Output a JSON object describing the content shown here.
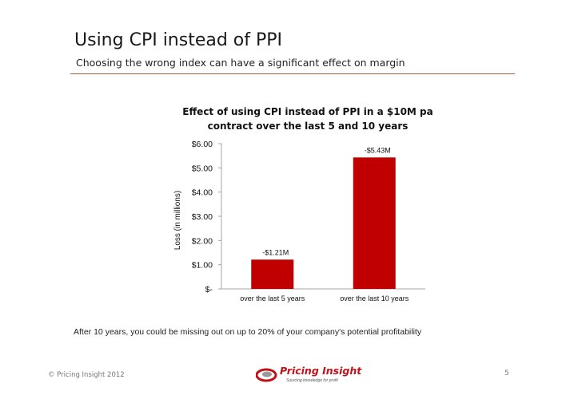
{
  "slide": {
    "title": "Using CPI instead of PPI",
    "subtitle": "Choosing the wrong index can have a significant effect on margin",
    "footnote": "After 10 years, you could be missing out on up to 20% of your company's potential profitability",
    "copyright": "© Pricing Insight 2012",
    "page_number": "5"
  },
  "logo": {
    "name": "Pricing Insight",
    "tagline": "Sourcing knowledge for profit"
  },
  "chart_data": {
    "type": "bar",
    "title_line1": "Effect of using CPI instead of PPI in a $10M pa",
    "title_line2": "contract over the last 5 and 10 years",
    "ylabel": "Loss (in millions)",
    "xlabel": "",
    "categories": [
      "over the last 5 years",
      "over the last 10 years"
    ],
    "values": [
      1.21,
      5.43
    ],
    "data_labels": [
      "-$1.21M",
      "-$5.43M"
    ],
    "ylim": [
      0,
      6
    ],
    "yticks": [
      0,
      1,
      2,
      3,
      4,
      5,
      6
    ],
    "ytick_labels": [
      "$-",
      "$1.00",
      "$2.00",
      "$3.00",
      "$4.00",
      "$5.00",
      "$6.00"
    ],
    "grid": false,
    "legend": "none",
    "colors": {
      "bar": "#c00000",
      "axis": "#a6a6a6"
    }
  }
}
